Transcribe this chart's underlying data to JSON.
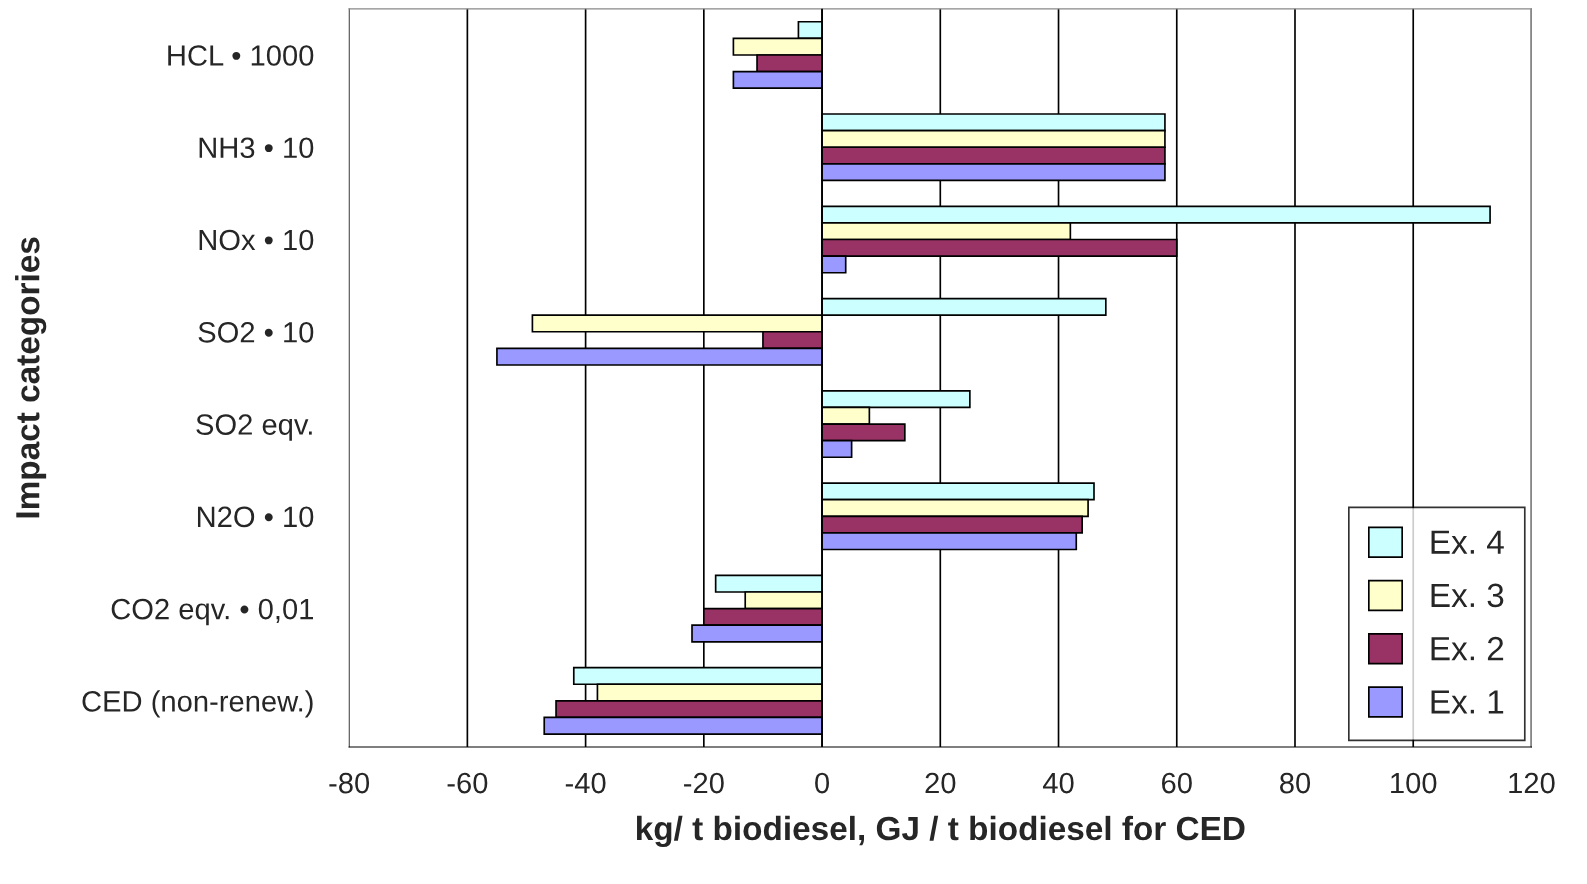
{
  "chart_data": {
    "type": "bar",
    "orientation": "horizontal",
    "categories": [
      "HCL • 1000",
      "NH3 • 10",
      "NOx • 10",
      "SO2 • 10",
      "SO2 eqv.",
      "N2O • 10",
      "CO2 eqv. • 0,01",
      "CED (non-renew.)"
    ],
    "series": [
      {
        "name": "Ex. 4",
        "color": "#ccffff",
        "values": [
          -4,
          58,
          113,
          48,
          25,
          46,
          -18,
          -42
        ]
      },
      {
        "name": "Ex. 3",
        "color": "#ffffcc",
        "values": [
          -15,
          58,
          42,
          -49,
          8,
          45,
          -13,
          -38
        ]
      },
      {
        "name": "Ex. 2",
        "color": "#993366",
        "values": [
          -11,
          58,
          60,
          -10,
          14,
          44,
          -20,
          -45
        ]
      },
      {
        "name": "Ex. 1",
        "color": "#9999ff",
        "values": [
          -15,
          58,
          4,
          -55,
          5,
          43,
          -22,
          -47
        ]
      }
    ],
    "xlim": [
      -80,
      120
    ],
    "xticks": [
      -80,
      -60,
      -40,
      -20,
      0,
      20,
      40,
      60,
      80,
      100,
      120
    ],
    "xlabel": "kg/ t biodiesel, GJ / t biodiesel for CED",
    "ylabel": "Impact categories",
    "grid": "x",
    "legend": "bottom right"
  }
}
